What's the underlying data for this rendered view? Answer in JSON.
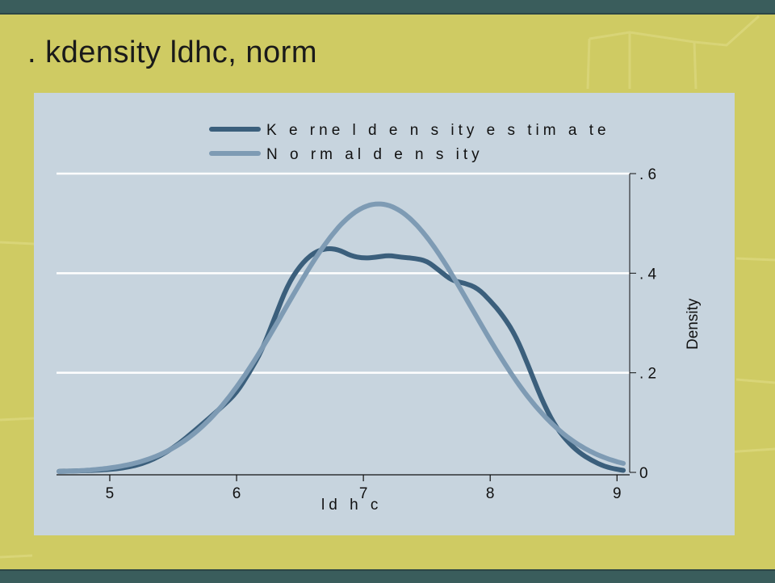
{
  "slide": {
    "title": ". kdensity ldhc, norm"
  },
  "chart_data": {
    "type": "line",
    "xlabel": "ld h c",
    "ylabel": "Density",
    "xlim": [
      4.58,
      9.1
    ],
    "ylim": [
      0,
      0.6
    ],
    "xticks": [
      5,
      6,
      7,
      8,
      9
    ],
    "xtick_labels": [
      "5",
      "6",
      "7",
      "8",
      "9"
    ],
    "yticks": [
      0,
      0.2,
      0.4,
      0.6
    ],
    "ytick_labels": [
      "0",
      ". 2",
      ". 4",
      ". 6"
    ],
    "grid": "horizontal",
    "legend_position": "top",
    "series": [
      {
        "name": "K e rne l d e n s ity e s tim a te",
        "color": "#3b5f7c",
        "x": [
          4.6,
          4.9,
          5.1,
          5.3,
          5.5,
          5.7,
          5.9,
          6.0,
          6.1,
          6.2,
          6.3,
          6.4,
          6.5,
          6.6,
          6.7,
          6.8,
          6.9,
          7.0,
          7.1,
          7.2,
          7.3,
          7.4,
          7.5,
          7.6,
          7.7,
          7.8,
          7.9,
          8.0,
          8.1,
          8.2,
          8.3,
          8.4,
          8.5,
          8.6,
          8.7,
          8.8,
          8.9,
          9.0,
          9.05
        ],
        "y": [
          0.002,
          0.004,
          0.008,
          0.02,
          0.048,
          0.09,
          0.135,
          0.16,
          0.2,
          0.245,
          0.31,
          0.375,
          0.415,
          0.44,
          0.45,
          0.448,
          0.435,
          0.43,
          0.432,
          0.436,
          0.432,
          0.43,
          0.425,
          0.405,
          0.385,
          0.38,
          0.37,
          0.345,
          0.315,
          0.275,
          0.215,
          0.15,
          0.098,
          0.064,
          0.04,
          0.024,
          0.012,
          0.006,
          0.004
        ]
      },
      {
        "name": "N o rm al d e n s ity",
        "color": "#7e9bb4",
        "mean": 7.12,
        "sd": 0.74
      }
    ]
  }
}
